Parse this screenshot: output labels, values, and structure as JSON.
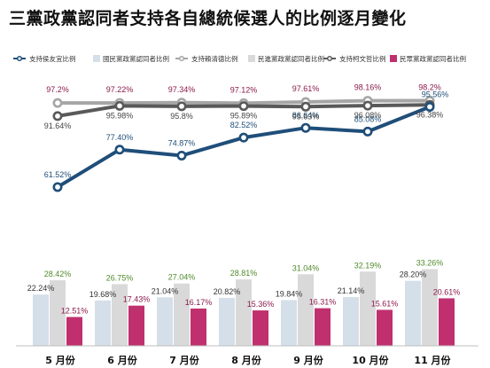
{
  "title": "三黨政黨認同者支持各自總統候選人的比例逐月變化",
  "chart_data": [
    {
      "type": "line",
      "categories": [
        "5 月份",
        "6 月份",
        "7 月份",
        "8 月份",
        "9 月份",
        "10 月份",
        "11 月份"
      ],
      "series": [
        {
          "name": "支持侯友宜比例",
          "color": "#1f4e79",
          "values": [
            61.52,
            77.4,
            74.87,
            82.52,
            86.64,
            85.08,
            95.56
          ],
          "labels": [
            "61.52%",
            "77.40%",
            "74.87%",
            "82.52%",
            "86.64%",
            "85.08%",
            "95.56%"
          ]
        },
        {
          "name": "支持賴清德比例",
          "color": "#a6a6a6",
          "values": [
            97.2,
            97.22,
            97.34,
            97.12,
            97.61,
            98.16,
            98.2
          ],
          "labels": [
            "97.2%",
            "97.22%",
            "97.34%",
            "97.12%",
            "97.61%",
            "98.16%",
            "98.2%"
          ]
        },
        {
          "name": "支持柯文哲比例",
          "color": "#595959",
          "values": [
            91.64,
            95.98,
            95.8,
            95.89,
            95.63,
            96.08,
            96.38
          ],
          "labels": [
            "91.64%",
            "95.98%",
            "95.8%",
            "95.89%",
            "95.63%",
            "96.08%",
            "96.38%"
          ]
        }
      ]
    },
    {
      "type": "bar",
      "categories": [
        "5 月份",
        "6 月份",
        "7 月份",
        "8 月份",
        "9 月份",
        "10 月份",
        "11 月份"
      ],
      "series": [
        {
          "name": "國民黨政黨認同者比例",
          "color": "#d5dfea",
          "values": [
            22.24,
            19.68,
            21.04,
            20.82,
            19.84,
            21.14,
            28.2
          ],
          "labels": [
            "22.24%",
            "19.68%",
            "21.04%",
            "20.82%",
            "19.84%",
            "21.14%",
            "28.20%"
          ]
        },
        {
          "name": "民進黨政黨認同者比例",
          "color": "#d9d9d9",
          "values": [
            28.42,
            26.75,
            27.04,
            28.81,
            31.04,
            32.19,
            33.26
          ],
          "labels": [
            "28.42%",
            "26.75%",
            "27.04%",
            "28.81%",
            "31.04%",
            "32.19%",
            "33.26%"
          ]
        },
        {
          "name": "民眾黨政黨認同者比例",
          "color": "#c0306e",
          "values": [
            12.51,
            17.43,
            16.17,
            15.36,
            16.31,
            15.61,
            20.61
          ],
          "labels": [
            "12.51%",
            "17.43%",
            "16.17%",
            "15.36%",
            "16.31%",
            "15.61%",
            "20.61%"
          ]
        }
      ]
    }
  ],
  "colors": {
    "ko_line": "#1f4e79",
    "lai_line": "#a6a6a6",
    "ko_wen_je_line": "#595959",
    "kmt_bar": "#d5dfea",
    "dpp_bar": "#d9d9d9",
    "tpp_bar": "#c0306e",
    "lai_label": "#8b1a4a",
    "dpp_label": "#4e8a2a"
  }
}
